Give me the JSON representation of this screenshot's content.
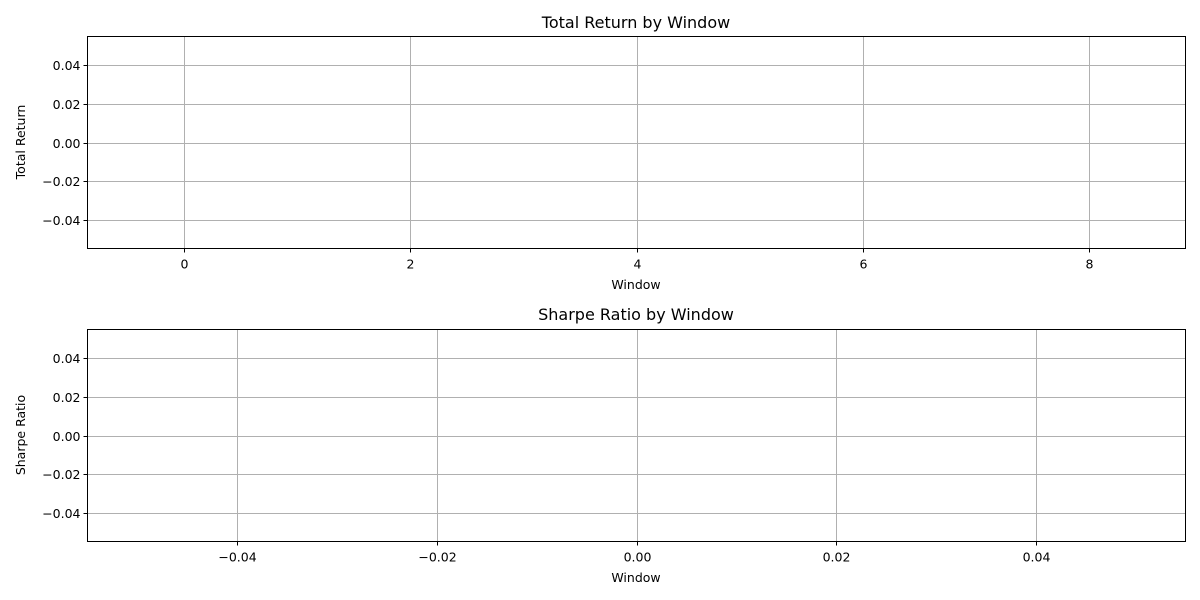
{
  "chart_data": [
    {
      "type": "line",
      "title": "Total Return by Window",
      "xlabel": "Window",
      "ylabel": "Total Return",
      "xlim": [
        -0.85,
        8.85
      ],
      "ylim": [
        -0.055,
        0.055
      ],
      "xticks": [
        0,
        2,
        4,
        6,
        8
      ],
      "xtick_labels": [
        "0",
        "2",
        "4",
        "6",
        "8"
      ],
      "yticks": [
        -0.04,
        -0.02,
        0.0,
        0.02,
        0.04
      ],
      "ytick_labels": [
        "−0.04",
        "−0.02",
        "0.00",
        "0.02",
        "0.04"
      ],
      "grid": true,
      "series": []
    },
    {
      "type": "line",
      "title": "Sharpe Ratio by Window",
      "xlabel": "Window",
      "ylabel": "Sharpe Ratio",
      "xlim": [
        -0.055,
        0.055
      ],
      "ylim": [
        -0.055,
        0.055
      ],
      "xticks": [
        -0.04,
        -0.02,
        0.0,
        0.02,
        0.04
      ],
      "xtick_labels": [
        "−0.04",
        "−0.02",
        "0.00",
        "0.02",
        "0.04"
      ],
      "yticks": [
        -0.04,
        -0.02,
        0.0,
        0.02,
        0.04
      ],
      "ytick_labels": [
        "−0.04",
        "−0.02",
        "0.00",
        "0.02",
        "0.04"
      ],
      "grid": true,
      "series": []
    }
  ]
}
